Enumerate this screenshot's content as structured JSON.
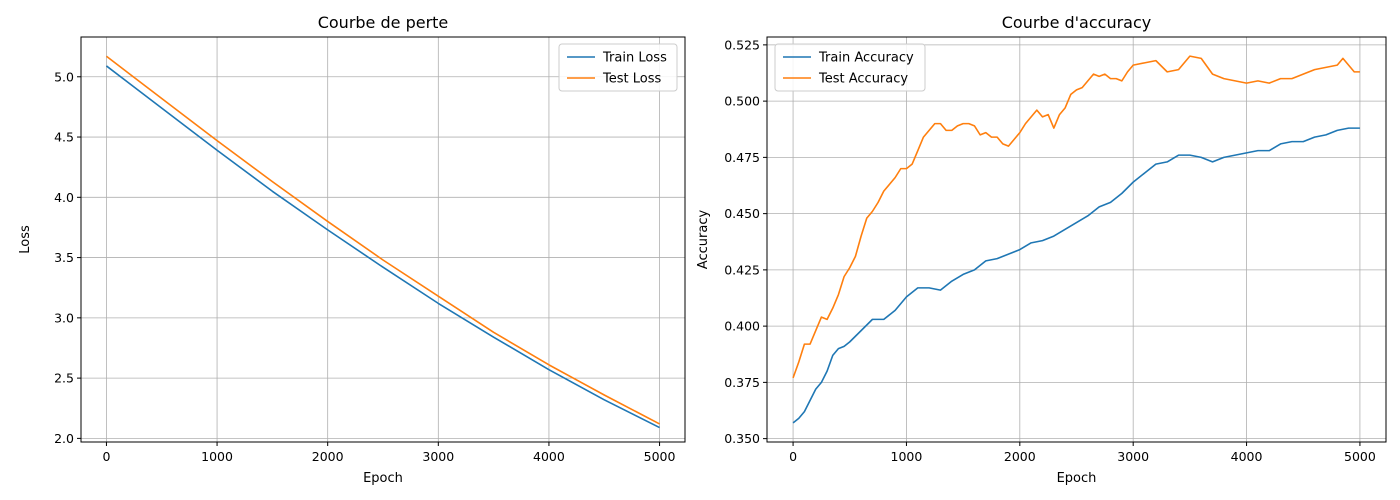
{
  "chart_data": [
    {
      "type": "line",
      "title": "Courbe de perte",
      "xlabel": "Epoch",
      "ylabel": "Loss",
      "xlim": [
        -230,
        5230
      ],
      "ylim": [
        1.97,
        5.33
      ],
      "xticks": [
        0,
        1000,
        2000,
        3000,
        4000,
        5000
      ],
      "yticks": [
        2.0,
        2.5,
        3.0,
        3.5,
        4.0,
        4.5,
        5.0
      ],
      "ytick_decimals": 1,
      "grid": true,
      "legend_position": "top-right",
      "series": [
        {
          "name": "Train Loss",
          "color": "#1f77b4",
          "x": [
            0,
            500,
            1000,
            1500,
            2000,
            2500,
            3000,
            3500,
            4000,
            4500,
            5000
          ],
          "y": [
            5.09,
            4.74,
            4.39,
            4.05,
            3.73,
            3.42,
            3.12,
            2.84,
            2.57,
            2.32,
            2.09
          ]
        },
        {
          "name": "Test Loss",
          "color": "#ff7f0e",
          "x": [
            0,
            500,
            1000,
            1500,
            2000,
            2500,
            3000,
            3500,
            4000,
            4500,
            5000
          ],
          "y": [
            5.17,
            4.82,
            4.47,
            4.13,
            3.8,
            3.48,
            3.18,
            2.88,
            2.61,
            2.36,
            2.12
          ]
        }
      ]
    },
    {
      "type": "line",
      "title": "Courbe d'accuracy",
      "xlabel": "Epoch",
      "ylabel": "Accuracy",
      "xlim": [
        -230,
        5230
      ],
      "ylim": [
        0.3485,
        0.5285
      ],
      "xticks": [
        0,
        1000,
        2000,
        3000,
        4000,
        5000
      ],
      "yticks": [
        0.35,
        0.375,
        0.4,
        0.425,
        0.45,
        0.475,
        0.5,
        0.525
      ],
      "ytick_decimals": 3,
      "grid": true,
      "legend_position": "top-left",
      "series": [
        {
          "name": "Train Accuracy",
          "color": "#1f77b4",
          "x": [
            0,
            50,
            100,
            150,
            200,
            250,
            300,
            350,
            400,
            450,
            500,
            600,
            700,
            800,
            900,
            1000,
            1100,
            1200,
            1300,
            1400,
            1500,
            1600,
            1700,
            1800,
            1900,
            2000,
            2100,
            2200,
            2300,
            2400,
            2500,
            2600,
            2700,
            2800,
            2900,
            3000,
            3100,
            3200,
            3300,
            3400,
            3500,
            3600,
            3700,
            3800,
            3900,
            4000,
            4100,
            4200,
            4300,
            4400,
            4500,
            4600,
            4700,
            4800,
            4900,
            5000
          ],
          "y": [
            0.357,
            0.359,
            0.362,
            0.367,
            0.372,
            0.375,
            0.38,
            0.387,
            0.39,
            0.391,
            0.393,
            0.398,
            0.403,
            0.403,
            0.407,
            0.413,
            0.417,
            0.417,
            0.416,
            0.42,
            0.423,
            0.425,
            0.429,
            0.43,
            0.432,
            0.434,
            0.437,
            0.438,
            0.44,
            0.443,
            0.446,
            0.449,
            0.453,
            0.455,
            0.459,
            0.464,
            0.468,
            0.472,
            0.473,
            0.476,
            0.476,
            0.475,
            0.473,
            0.475,
            0.476,
            0.477,
            0.478,
            0.478,
            0.481,
            0.482,
            0.482,
            0.484,
            0.485,
            0.487,
            0.488,
            0.488
          ]
        },
        {
          "name": "Test Accuracy",
          "color": "#ff7f0e",
          "x": [
            0,
            50,
            100,
            150,
            200,
            250,
            300,
            350,
            400,
            450,
            500,
            550,
            600,
            650,
            700,
            750,
            800,
            850,
            900,
            950,
            1000,
            1050,
            1100,
            1150,
            1200,
            1250,
            1300,
            1350,
            1400,
            1450,
            1500,
            1550,
            1600,
            1650,
            1700,
            1750,
            1800,
            1850,
            1900,
            1950,
            2000,
            2050,
            2100,
            2150,
            2200,
            2250,
            2300,
            2350,
            2400,
            2450,
            2500,
            2550,
            2600,
            2650,
            2700,
            2750,
            2800,
            2850,
            2900,
            2950,
            3000,
            3100,
            3200,
            3300,
            3400,
            3500,
            3600,
            3700,
            3800,
            3900,
            4000,
            4100,
            4200,
            4300,
            4400,
            4500,
            4600,
            4700,
            4800,
            4850,
            4900,
            4950,
            5000
          ],
          "y": [
            0.377,
            0.384,
            0.392,
            0.392,
            0.398,
            0.404,
            0.403,
            0.408,
            0.414,
            0.422,
            0.426,
            0.431,
            0.44,
            0.448,
            0.451,
            0.455,
            0.46,
            0.463,
            0.466,
            0.47,
            0.47,
            0.472,
            0.478,
            0.484,
            0.487,
            0.49,
            0.49,
            0.487,
            0.487,
            0.489,
            0.49,
            0.49,
            0.489,
            0.485,
            0.486,
            0.484,
            0.484,
            0.481,
            0.48,
            0.483,
            0.486,
            0.49,
            0.493,
            0.496,
            0.493,
            0.494,
            0.488,
            0.494,
            0.497,
            0.503,
            0.505,
            0.506,
            0.509,
            0.512,
            0.511,
            0.512,
            0.51,
            0.51,
            0.509,
            0.513,
            0.516,
            0.517,
            0.518,
            0.513,
            0.514,
            0.52,
            0.519,
            0.512,
            0.51,
            0.509,
            0.508,
            0.509,
            0.508,
            0.51,
            0.51,
            0.512,
            0.514,
            0.515,
            0.516,
            0.519,
            0.516,
            0.513,
            0.513
          ]
        }
      ]
    }
  ]
}
